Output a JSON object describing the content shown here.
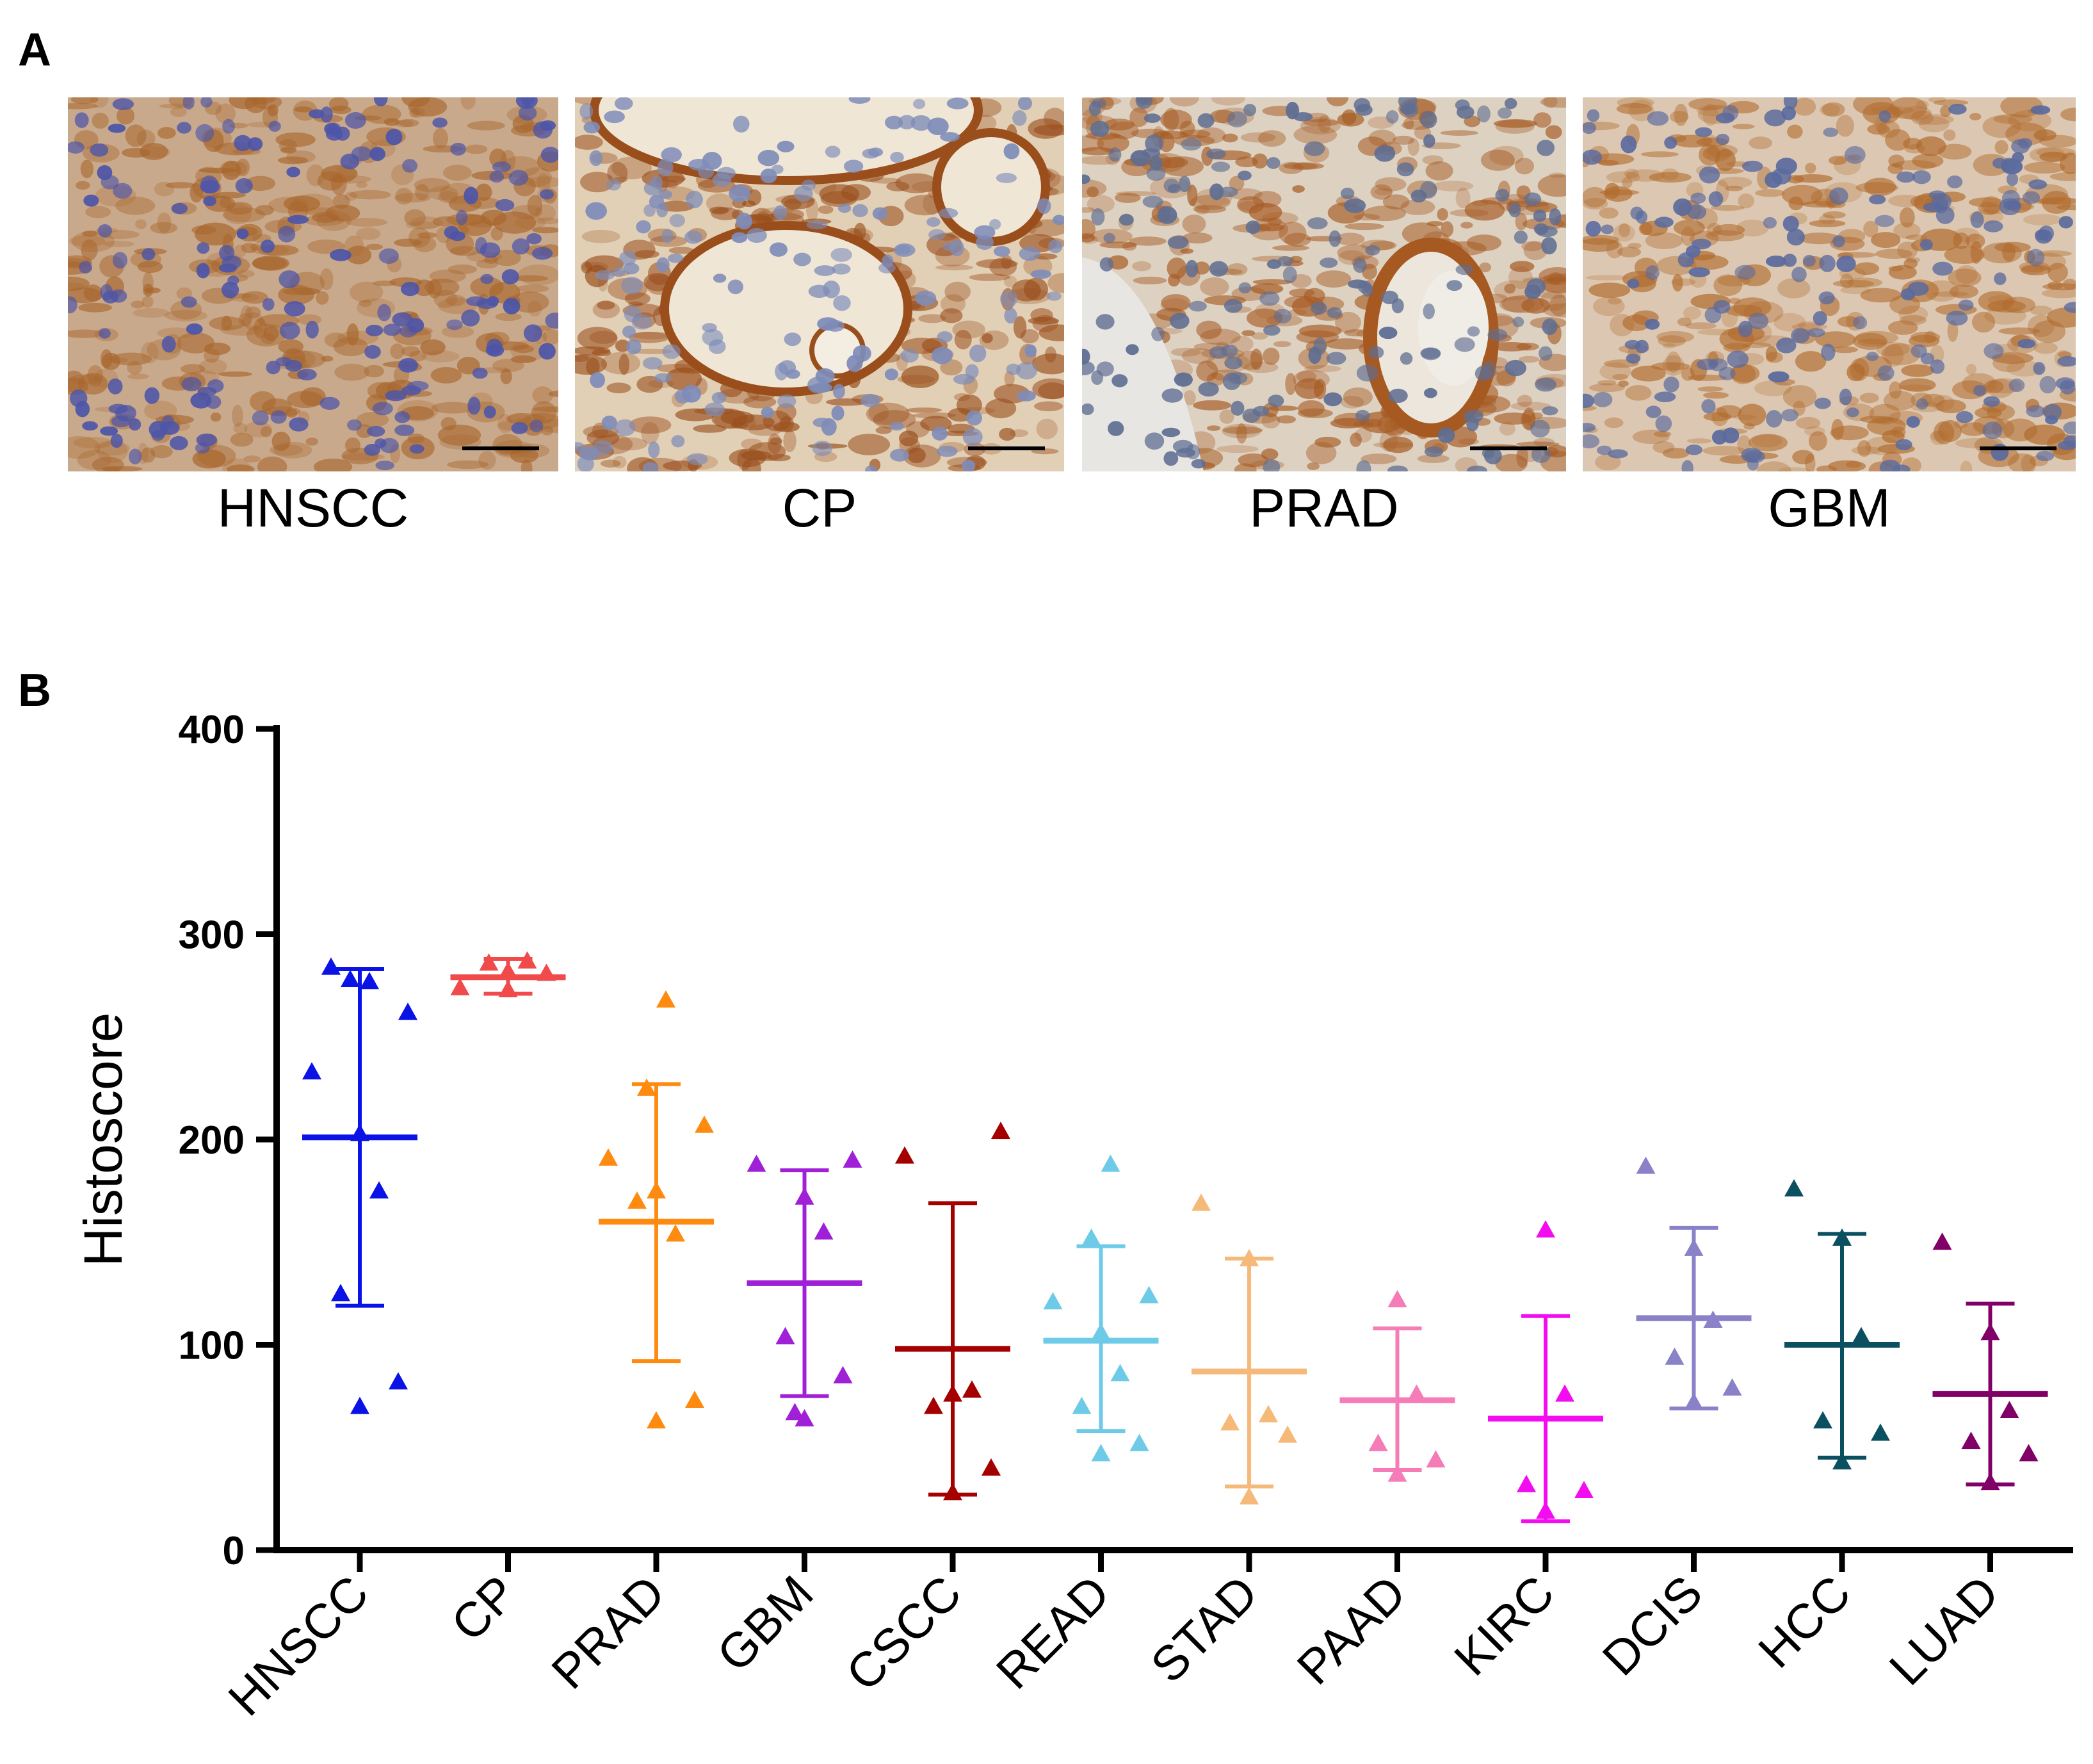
{
  "panel_a": {
    "label": "A",
    "images": [
      {
        "label": "HNSCC",
        "bg": "#c9a98c",
        "stain": "#a8662c",
        "nuclei": "#4d55a8"
      },
      {
        "label": "CP",
        "bg": "#e2d0b6",
        "stain": "#9a4e1c",
        "nuclei": "#7e8cb8"
      },
      {
        "label": "PRAD",
        "bg": "#ddd2c2",
        "stain": "#a65a22",
        "nuclei": "#5f6e92"
      },
      {
        "label": "GBM",
        "bg": "#dcc8b2",
        "stain": "#b06a2c",
        "nuclei": "#5a6a9e"
      }
    ]
  },
  "panel_b": {
    "label": "B"
  },
  "chart_data": {
    "type": "scatter",
    "ylabel": "Histoscore",
    "xlabel": "",
    "ylim": [
      0,
      400
    ],
    "yticks": [
      0,
      100,
      200,
      300,
      400
    ],
    "grid": false,
    "marker": "triangle",
    "series": [
      {
        "name": "HNSCC",
        "color": "#0a12e6",
        "mean": 201,
        "sd_low": 119,
        "sd_high": 283,
        "points": [
          70,
          82,
          125,
          175,
          203,
          233,
          262,
          278,
          277,
          284
        ]
      },
      {
        "name": "CP",
        "color": "#f04a4a",
        "mean": 279,
        "sd_low": 271,
        "sd_high": 288,
        "points": [
          273,
          281,
          286,
          287,
          282,
          274
        ]
      },
      {
        "name": "PRAD",
        "color": "#ff8a10",
        "mean": 160,
        "sd_low": 92,
        "sd_high": 227,
        "points": [
          63,
          73,
          170,
          154,
          175,
          191,
          207,
          225,
          268
        ]
      },
      {
        "name": "GBM",
        "color": "#a020d8",
        "mean": 130,
        "sd_low": 75,
        "sd_high": 185,
        "points": [
          64,
          85,
          104,
          155,
          172,
          188,
          190,
          67
        ]
      },
      {
        "name": "CSCC",
        "color": "#a50000",
        "mean": 98,
        "sd_low": 27,
        "sd_high": 169,
        "points": [
          28,
          40,
          70,
          78,
          76,
          192,
          204
        ]
      },
      {
        "name": "READ",
        "color": "#6ecbe8",
        "mean": 102,
        "sd_low": 58,
        "sd_high": 148,
        "points": [
          47,
          52,
          70,
          86,
          106,
          121,
          124,
          152,
          188
        ]
      },
      {
        "name": "STAD",
        "color": "#f5b97a",
        "mean": 87,
        "sd_low": 31,
        "sd_high": 142,
        "points": [
          26,
          56,
          62,
          66,
          142,
          169
        ]
      },
      {
        "name": "PAAD",
        "color": "#f57cb6",
        "mean": 73,
        "sd_low": 39,
        "sd_high": 108,
        "points": [
          37,
          44,
          52,
          76,
          122
        ]
      },
      {
        "name": "KIRC",
        "color": "#f40cf0",
        "mean": 64,
        "sd_low": 14,
        "sd_high": 114,
        "points": [
          19,
          29,
          32,
          76,
          156
        ]
      },
      {
        "name": "DCIS",
        "color": "#8a82c8",
        "mean": 113,
        "sd_low": 69,
        "sd_high": 157,
        "points": [
          72,
          79,
          94,
          112,
          147,
          187
        ]
      },
      {
        "name": "HCC",
        "color": "#0a5060",
        "mean": 100,
        "sd_low": 45,
        "sd_high": 154,
        "points": [
          43,
          57,
          63,
          104,
          152,
          176
        ]
      },
      {
        "name": "LUAD",
        "color": "#800068",
        "mean": 76,
        "sd_low": 32,
        "sd_high": 120,
        "points": [
          33,
          47,
          53,
          68,
          106,
          150
        ]
      }
    ]
  }
}
